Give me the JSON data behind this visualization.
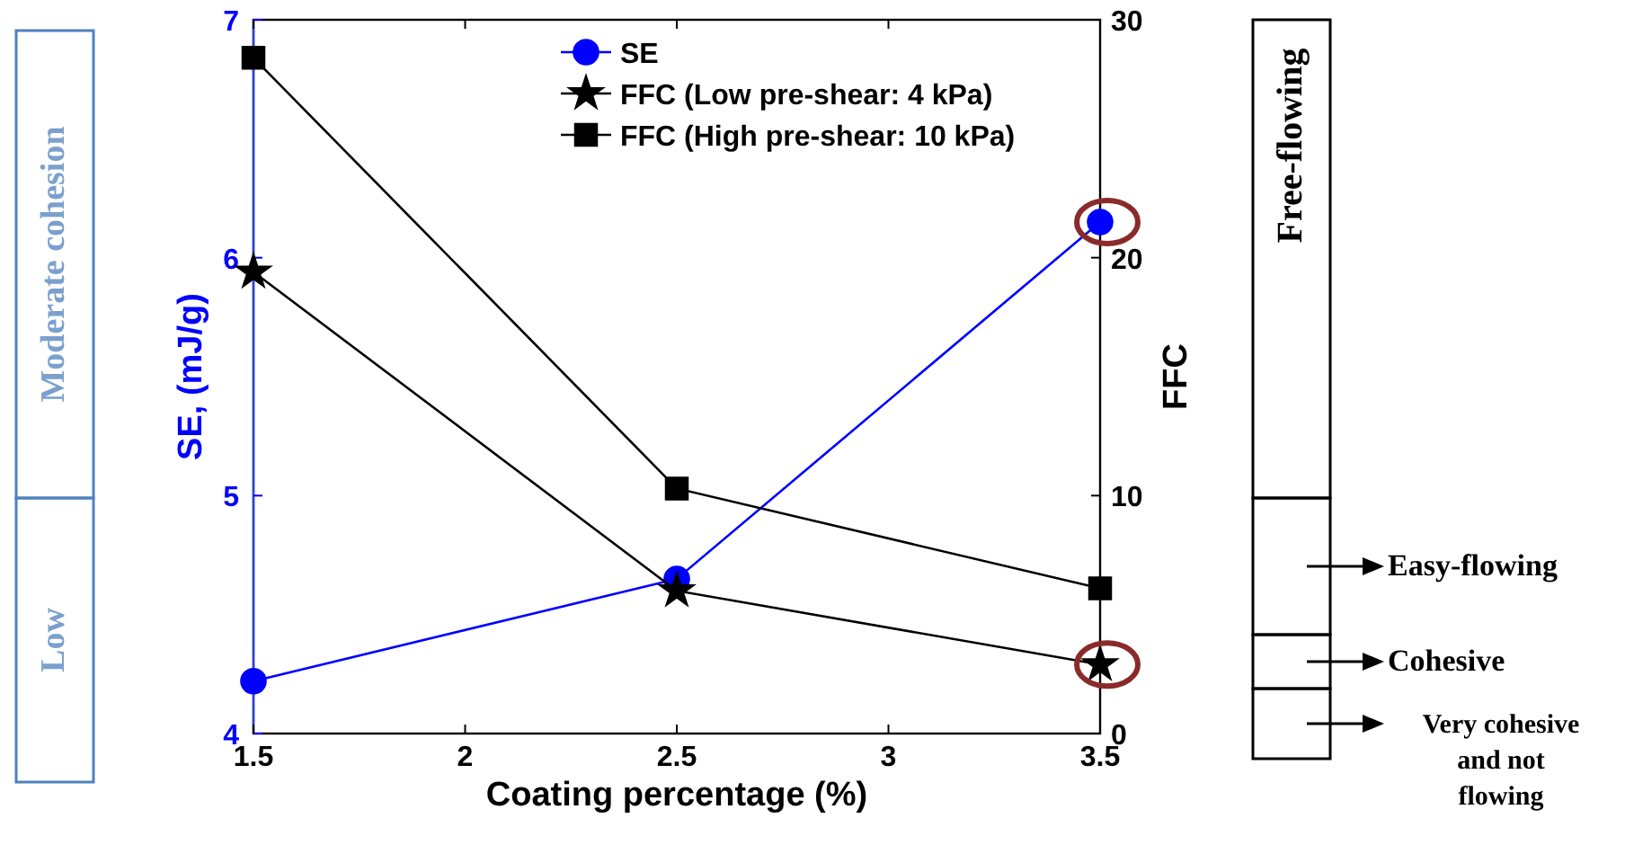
{
  "chart_data": {
    "type": "line",
    "xlabel": "Coating percentage (%)",
    "ylabel": "SE, (mJ/g)",
    "y2label": "FFC",
    "x": [
      1.5,
      2.5,
      3.5
    ],
    "xlim": [
      1.5,
      3.5
    ],
    "xticks": [
      1.5,
      2,
      2.5,
      3,
      3.5
    ],
    "ylim": [
      4,
      7
    ],
    "yticks": [
      4,
      5,
      6,
      7
    ],
    "y2lim": [
      0,
      30
    ],
    "y2ticks": [
      0,
      10,
      20,
      30
    ],
    "series": [
      {
        "name": "SE",
        "color": "#0000ff",
        "marker": "circle",
        "values": [
          4.22,
          4.65,
          6.15
        ]
      },
      {
        "name": "FFC (Low pre-shear: 4 kPa)",
        "color": "#000000",
        "marker": "star",
        "axis": "y2",
        "values": [
          19.4,
          6.0,
          2.9
        ]
      },
      {
        "name": "FFC (High pre-shear: 10 kPa)",
        "color": "#000000",
        "marker": "square",
        "axis": "y2",
        "values": [
          28.4,
          10.3,
          6.1
        ]
      }
    ],
    "annotations": [
      "Moderate cohesion",
      "Low",
      "Free-flowing",
      "Easy-flowing",
      "Cohesive",
      "Very cohesive and not flowing"
    ],
    "legend": "top right",
    "grid": false,
    "line_style": "solid"
  }
}
